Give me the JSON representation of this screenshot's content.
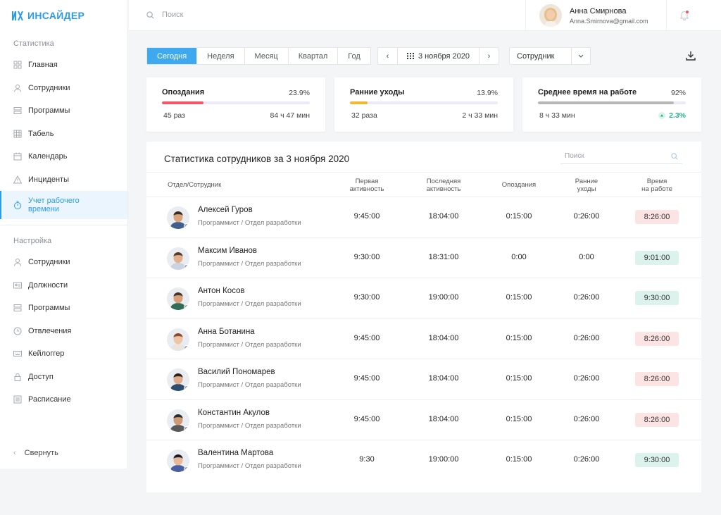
{
  "app": {
    "logo_text": "ИНСАЙДЕР"
  },
  "sidebar": {
    "stats_title": "Статистика",
    "stats_items": [
      {
        "label": "Главная",
        "icon": "grid-icon"
      },
      {
        "label": "Сотрудники",
        "icon": "user-icon"
      },
      {
        "label": "Программы",
        "icon": "apps-icon"
      },
      {
        "label": "Табель",
        "icon": "table-icon"
      },
      {
        "label": "Календарь",
        "icon": "calendar-icon"
      },
      {
        "label": "Инциденты",
        "icon": "warning-icon"
      },
      {
        "label": "Учет рабочего времени",
        "icon": "stopwatch-icon",
        "active": true
      }
    ],
    "settings_title": "Настройка",
    "settings_items": [
      {
        "label": "Сотрудники",
        "icon": "user-icon"
      },
      {
        "label": "Должности",
        "icon": "id-card-icon"
      },
      {
        "label": "Программы",
        "icon": "apps-icon"
      },
      {
        "label": "Отвлечения",
        "icon": "clock-icon"
      },
      {
        "label": "Кейлоггер",
        "icon": "keyboard-icon"
      },
      {
        "label": "Доступ",
        "icon": "lock-icon"
      },
      {
        "label": "Расписание",
        "icon": "list-icon"
      }
    ],
    "collapse_label": "Свернуть"
  },
  "topbar": {
    "search_placeholder": "Поиск",
    "user_name": "Анна Смирнова",
    "user_email": "Anna.Smirnova@gmail.com"
  },
  "filters": {
    "tabs": [
      "Сегодня",
      "Неделя",
      "Месяц",
      "Квартал",
      "Год"
    ],
    "active_tab": 0,
    "date": "3 ноября 2020",
    "employee_select": "Сотрудник"
  },
  "cards": [
    {
      "title": "Опоздания",
      "percent": "23.9%",
      "fill": 0.28,
      "color": "#f25767",
      "left": "45 раз",
      "right": "84 ч 47 мин"
    },
    {
      "title": "Ранние уходы",
      "percent": "13.9%",
      "fill": 0.12,
      "color": "#f2b730",
      "left": "32 раза",
      "right": "2 ч 33 мин"
    },
    {
      "title": "Среднее время на работе",
      "percent": "92%",
      "fill": 0.92,
      "color": "#b7b7b7",
      "left": "8 ч 33 мин",
      "right": "2.3%",
      "trend": "up"
    }
  ],
  "table": {
    "title": "Статистика сотрудников за 3 ноября 2020",
    "search_placeholder": "Поиск",
    "headers": {
      "employee": "Отдел/Сотрудник",
      "first_activity": "Первая\nактивность",
      "last_activity": "Последняя\nактивность",
      "late": "Опоздания",
      "early": "Ранние\nуходы",
      "worktime": "Время\nна работе"
    },
    "rows": [
      {
        "name": "Алексей Гуров",
        "position": "Программист / Отдел разработки",
        "first": "9:45:00",
        "last": "18:04:00",
        "late": "0:15:00",
        "early": "0:26:00",
        "work": "8:26:00",
        "status": "red",
        "skin": "#d9a47c",
        "hair": "#3a2a1e",
        "shirt": "#3f5f8a"
      },
      {
        "name": "Максим Иванов",
        "position": "Программист / Отдел разработки",
        "first": "9:30:00",
        "last": "18:31:00",
        "late": "0:00",
        "early": "0:00",
        "work": "9:01:00",
        "status": "green",
        "skin": "#e2b08e",
        "hair": "#5a3b26",
        "shirt": "#c9d4e0"
      },
      {
        "name": "Антон Косов",
        "position": "Программист / Отдел разработки",
        "first": "9:30:00",
        "last": "19:00:00",
        "late": "0:15:00",
        "early": "0:26:00",
        "work": "9:30:00",
        "status": "green",
        "skin": "#d8a07a",
        "hair": "#4a3424",
        "shirt": "#2f6b55"
      },
      {
        "name": "Анна Ботанина",
        "position": "Программист / Отдел разработки",
        "first": "9:45:00",
        "last": "18:04:00",
        "late": "0:15:00",
        "early": "0:26:00",
        "work": "8:26:00",
        "status": "red",
        "skin": "#efc3a6",
        "hair": "#8a4a2a",
        "shirt": "#e9e4df"
      },
      {
        "name": "Василий Пономарев",
        "position": "Программист / Отдел разработки",
        "first": "9:45:00",
        "last": "18:04:00",
        "late": "0:15:00",
        "early": "0:26:00",
        "work": "8:26:00",
        "status": "red",
        "skin": "#e0ab88",
        "hair": "#2b2018",
        "shirt": "#2c4d6e"
      },
      {
        "name": "Константин Акулов",
        "position": "Программист / Отдел разработки",
        "first": "9:45:00",
        "last": "18:04:00",
        "late": "0:15:00",
        "early": "0:26:00",
        "work": "8:26:00",
        "status": "red",
        "skin": "#cf9a76",
        "hair": "#2a2a2a",
        "shirt": "#5a5a5a"
      },
      {
        "name": "Валентина Мартова",
        "position": "Программист / Отдел разработки",
        "first": "9:30",
        "last": "19:00:00",
        "late": "0:15:00",
        "early": "0:26:00",
        "work": "9:30:00",
        "status": "green",
        "skin": "#e8b896",
        "hair": "#1e1a2a",
        "shirt": "#4a5fa0"
      }
    ]
  }
}
